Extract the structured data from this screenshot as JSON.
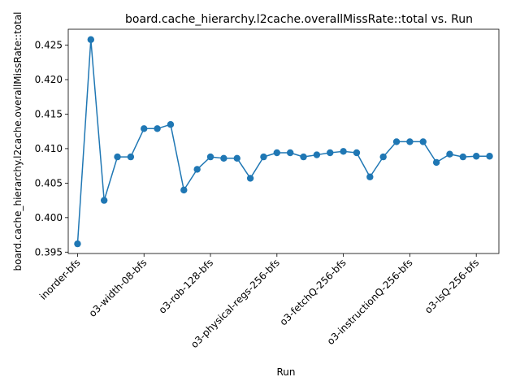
{
  "chart_data": {
    "type": "line",
    "title": "board.cache_hierarchy.l2cache.overallMissRate::total vs. Run",
    "xlabel": "Run",
    "ylabel": "board.cache_hierarchy.l2cache.overallMissRate::total",
    "ylim": [
      0.3948,
      0.4273
    ],
    "yticks": [
      0.395,
      0.4,
      0.405,
      0.41,
      0.415,
      0.42,
      0.425
    ],
    "ytick_labels": [
      "0.395",
      "0.400",
      "0.405",
      "0.410",
      "0.415",
      "0.420",
      "0.425"
    ],
    "xtick_indices": [
      0,
      5,
      10,
      15,
      20,
      25,
      30
    ],
    "xtick_labels": [
      "inorder-bfs",
      "o3-width-08-bfs",
      "o3-rob-128-bfs",
      "o3-physical-regs-256-bfs",
      "o3-fetchQ-256-bfs",
      "o3-instructionQ-256-bfs",
      "o3-lsQ-256-bfs"
    ],
    "series": [
      {
        "color": "#1f77b4",
        "values": [
          0.3962,
          0.4258,
          0.4025,
          0.4088,
          0.4088,
          0.4129,
          0.4129,
          0.4135,
          0.404,
          0.407,
          0.4088,
          0.4086,
          0.4086,
          0.4057,
          0.4088,
          0.4094,
          0.4094,
          0.4088,
          0.4091,
          0.4094,
          0.4096,
          0.4094,
          0.4059,
          0.4088,
          0.411,
          0.411,
          0.411,
          0.408,
          0.4092,
          0.4088,
          0.4089,
          0.4089
        ]
      }
    ],
    "grid": false,
    "legend": "none"
  }
}
